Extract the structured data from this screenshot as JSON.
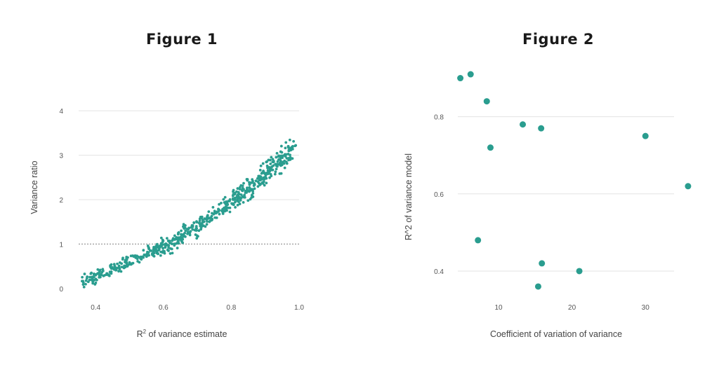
{
  "chart_data": [
    {
      "type": "scatter",
      "title": "Figure 1",
      "xlabel_main": "R",
      "xlabel_sup": "2",
      "xlabel_rest": " of variance estimate",
      "ylabel": "Variance ratio",
      "xlim": [
        0.35,
        1.0
      ],
      "ylim": [
        -0.05,
        4.6
      ],
      "xticks": [
        0.4,
        0.6,
        0.8,
        1.0
      ],
      "xtick_labels": [
        "0.4",
        "0.6",
        "0.8",
        "1.0"
      ],
      "yticks": [
        0,
        1,
        2,
        3,
        4
      ],
      "ytick_labels": [
        "0",
        "1",
        "2",
        "3",
        "4"
      ],
      "reference_line": 1,
      "grid": "horizontal",
      "color": "#2a9d8f",
      "points_note": "",
      "point_count": 620
    },
    {
      "type": "scatter",
      "title": "Figure 2",
      "xlabel": "Coefficient of variation of variance",
      "ylabel": "R^2 of variance model",
      "xlim": [
        3.5,
        36
      ],
      "ylim": [
        0.34,
        0.93
      ],
      "xticks": [
        10,
        20,
        30
      ],
      "xtick_labels": [
        "10",
        "20",
        "30"
      ],
      "yticks": [
        0.4,
        0.6,
        0.8
      ],
      "ytick_labels": [
        "0.4",
        "0.6",
        "0.8"
      ],
      "grid": "horizontal",
      "color": "#2a9d8f",
      "x": [
        4.8,
        6.2,
        8.4,
        8.9,
        7.2,
        13.3,
        15.8,
        15.9,
        15.4,
        21.0,
        30.0,
        35.8
      ],
      "y": [
        0.9,
        0.91,
        0.84,
        0.72,
        0.48,
        0.78,
        0.77,
        0.42,
        0.36,
        0.4,
        0.75,
        0.62
      ]
    }
  ]
}
